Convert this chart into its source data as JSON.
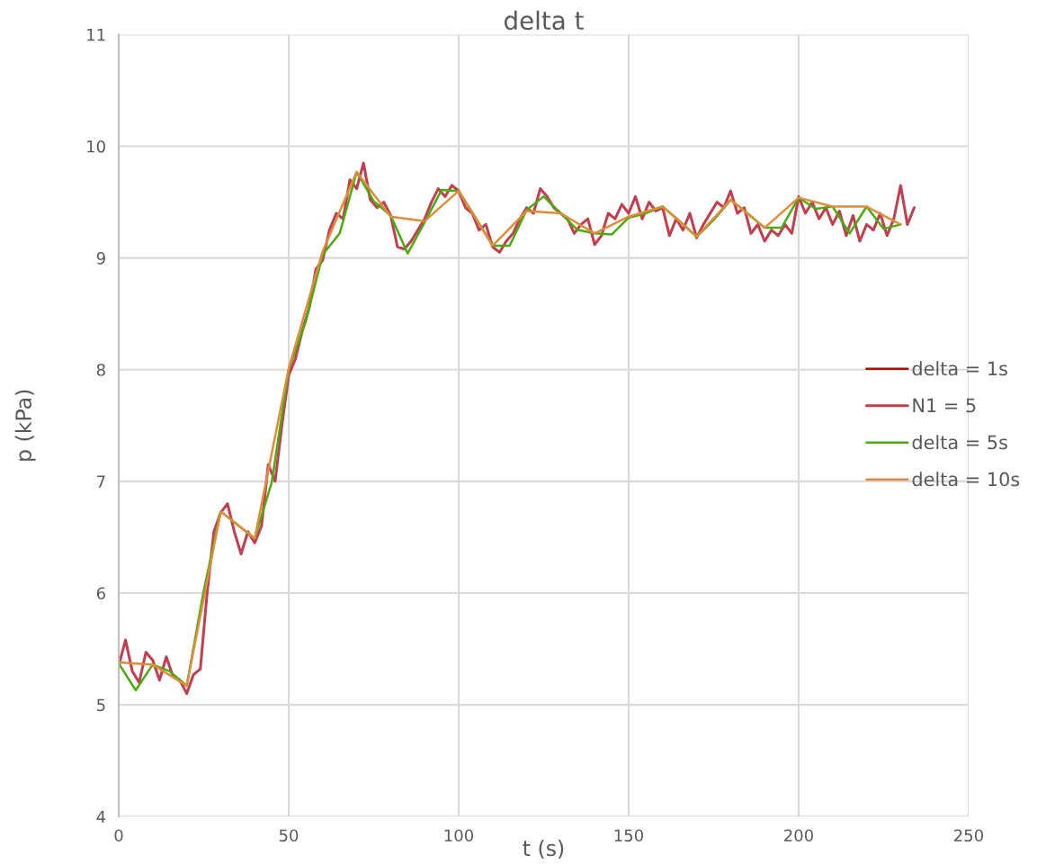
{
  "chart_data": {
    "type": "line",
    "title": "delta t",
    "xlabel": "t (s)",
    "ylabel": "p (kPa)",
    "xlim": [
      0,
      250
    ],
    "xticks": [
      0,
      50,
      100,
      150,
      200,
      250
    ],
    "ylim": [
      4,
      11
    ],
    "yticks": [
      4,
      5,
      6,
      7,
      8,
      9,
      10,
      11
    ],
    "grid": true,
    "legend": "right",
    "marker": "none",
    "line_style": "solid",
    "series": [
      {
        "name": "delta = 1s",
        "color": "#c00000"
      },
      {
        "name": "N1 = 5",
        "color": "#c0404f",
        "x": [
          0,
          2,
          4,
          6,
          8,
          10,
          12,
          14,
          16,
          18,
          20,
          22,
          24,
          26,
          28,
          30,
          32,
          34,
          36,
          38,
          40,
          42,
          44,
          46,
          48,
          50,
          52,
          54,
          56,
          58,
          60,
          62,
          64,
          66,
          68,
          70,
          72,
          74,
          76,
          78,
          80,
          82,
          84,
          86,
          88,
          90,
          92,
          94,
          96,
          98,
          100,
          102,
          104,
          106,
          108,
          110,
          112,
          114,
          116,
          118,
          120,
          122,
          124,
          126,
          128,
          130,
          132,
          134,
          136,
          138,
          140,
          142,
          144,
          146,
          148,
          150,
          152,
          154,
          156,
          158,
          160,
          162,
          164,
          166,
          168,
          170,
          172,
          174,
          176,
          178,
          180,
          182,
          184,
          186,
          188,
          190,
          192,
          194,
          196,
          198,
          200,
          202,
          204,
          206,
          208,
          210,
          212,
          214,
          216,
          218,
          220,
          222,
          224,
          226,
          228,
          230,
          232,
          234
        ],
        "values": [
          5.35,
          5.58,
          5.3,
          5.2,
          5.47,
          5.4,
          5.22,
          5.43,
          5.25,
          5.22,
          5.1,
          5.27,
          5.32,
          6.0,
          6.55,
          6.72,
          6.8,
          6.55,
          6.35,
          6.55,
          6.45,
          6.6,
          7.15,
          7.0,
          7.5,
          7.95,
          8.1,
          8.35,
          8.55,
          8.9,
          8.98,
          9.25,
          9.4,
          9.35,
          9.7,
          9.62,
          9.85,
          9.52,
          9.45,
          9.5,
          9.38,
          9.1,
          9.08,
          9.15,
          9.25,
          9.35,
          9.5,
          9.62,
          9.55,
          9.65,
          9.6,
          9.45,
          9.4,
          9.25,
          9.3,
          9.1,
          9.05,
          9.15,
          9.22,
          9.35,
          9.45,
          9.4,
          9.62,
          9.55,
          9.45,
          9.4,
          9.35,
          9.22,
          9.3,
          9.35,
          9.12,
          9.2,
          9.4,
          9.35,
          9.48,
          9.4,
          9.55,
          9.35,
          9.5,
          9.42,
          9.45,
          9.2,
          9.35,
          9.25,
          9.4,
          9.18,
          9.3,
          9.4,
          9.5,
          9.45,
          9.6,
          9.4,
          9.45,
          9.22,
          9.3,
          9.15,
          9.25,
          9.2,
          9.3,
          9.22,
          9.55,
          9.4,
          9.5,
          9.35,
          9.45,
          9.3,
          9.42,
          9.2,
          9.38,
          9.15,
          9.3,
          9.25,
          9.4,
          9.2,
          9.35,
          9.65,
          9.3,
          9.45
        ]
      },
      {
        "name": "delta = 5s",
        "color": "#4aab0f",
        "x": [
          0,
          5,
          10,
          15,
          20,
          25,
          30,
          35,
          40,
          45,
          50,
          55,
          60,
          65,
          70,
          75,
          80,
          85,
          90,
          95,
          100,
          105,
          110,
          115,
          120,
          125,
          130,
          135,
          140,
          145,
          150,
          155,
          160,
          165,
          170,
          175,
          180,
          185,
          190,
          195,
          200,
          205,
          210,
          215,
          220,
          225,
          230
        ],
        "values": [
          5.37,
          5.13,
          5.36,
          5.3,
          5.17,
          6.02,
          6.73,
          6.61,
          6.49,
          6.99,
          8.0,
          8.43,
          9.03,
          9.22,
          9.77,
          9.51,
          9.38,
          9.04,
          9.32,
          9.61,
          9.6,
          9.36,
          9.11,
          9.11,
          9.43,
          9.55,
          9.4,
          9.25,
          9.22,
          9.21,
          9.36,
          9.4,
          9.46,
          9.33,
          9.19,
          9.34,
          9.52,
          9.4,
          9.27,
          9.27,
          9.54,
          9.44,
          9.46,
          9.22,
          9.46,
          9.26,
          9.3
        ]
      },
      {
        "name": "delta = 10s",
        "color": "#e08c3c",
        "x": [
          0,
          10,
          20,
          30,
          40,
          50,
          60,
          70,
          80,
          90,
          100,
          110,
          120,
          130,
          140,
          150,
          160,
          170,
          180,
          190,
          200,
          210,
          220,
          230
        ],
        "values": [
          5.38,
          5.36,
          5.17,
          6.73,
          6.49,
          8.01,
          9.06,
          9.77,
          9.37,
          9.33,
          9.6,
          9.11,
          9.42,
          9.4,
          9.22,
          9.37,
          9.46,
          9.19,
          9.52,
          9.27,
          9.54,
          9.46,
          9.46,
          9.3
        ]
      }
    ]
  }
}
